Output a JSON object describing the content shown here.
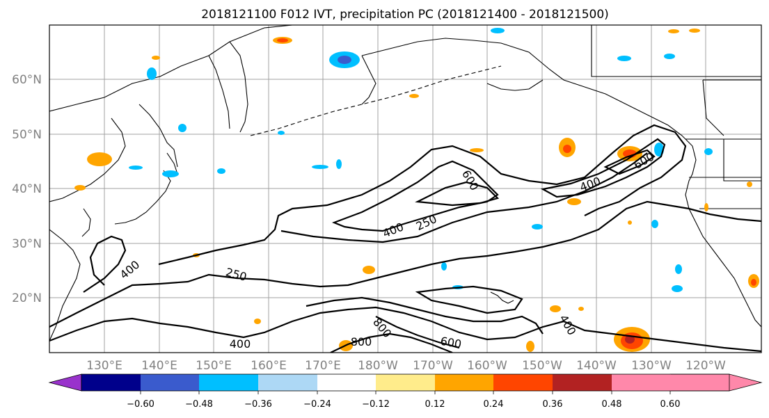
{
  "title": "2018121100 F012 IVT, precipitation PC (2018121400 - 2018121500)",
  "map": {
    "lat_labels": [
      "60°N",
      "50°N",
      "40°N",
      "30°N",
      "20°N"
    ],
    "lon_labels": [
      "130°E",
      "140°E",
      "150°E",
      "160°E",
      "170°E",
      "180°W",
      "170°W",
      "160°W",
      "150°W",
      "140°W",
      "130°W",
      "120°W"
    ],
    "ivt_contour_levels": [
      250,
      400,
      600,
      800
    ],
    "contour_labels": [
      "400",
      "250",
      "400",
      "600",
      "400",
      "250",
      "400",
      "600",
      "800",
      "600",
      "800",
      "400"
    ]
  },
  "colorbar": {
    "colors": [
      "#9932cc",
      "#00008b",
      "#3a5bcd",
      "#00bfff",
      "#add8f5",
      "#ffffff",
      "#ffec8b",
      "#ffa500",
      "#ff4500",
      "#b22222",
      "#ff88aa"
    ],
    "ticks": [
      "−0.60",
      "−0.48",
      "−0.36",
      "−0.24",
      "−0.12",
      "0.12",
      "0.24",
      "0.36",
      "0.48",
      "0.60"
    ]
  }
}
